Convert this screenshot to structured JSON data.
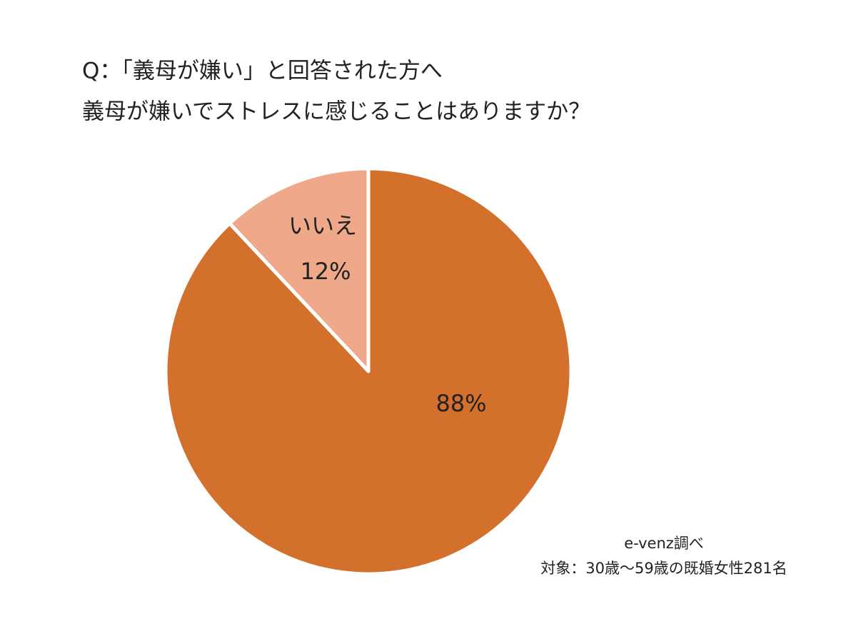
{
  "chart_data": {
    "type": "pie",
    "title": [
      "Q：「義母が嫌い」と回答された方へ",
      "義母が嫌いでストレスに感じることはありますか？"
    ],
    "categories": [
      "いいえ",
      null
    ],
    "values": [
      12,
      88
    ],
    "value_labels": [
      "12%",
      "88%"
    ],
    "colors": [
      "#f0a88a",
      "#d2702c"
    ],
    "notes": [
      "e-venz調べ",
      "対象：30歳〜59歳の既婚女性281名"
    ]
  }
}
